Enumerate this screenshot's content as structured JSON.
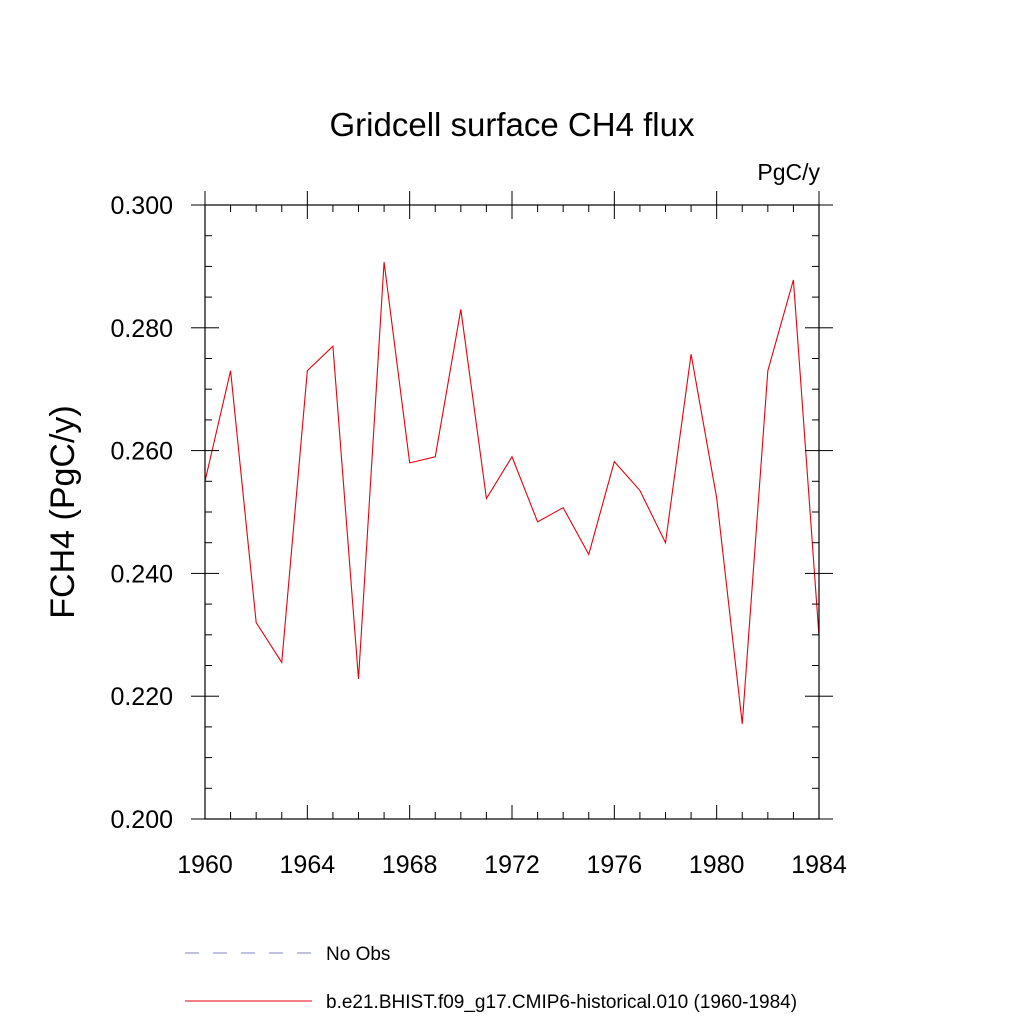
{
  "chart_data": {
    "type": "line",
    "title": "Gridcell surface CH4 flux",
    "units_label": "PgC/y",
    "ylabel": "FCH4  (PgC/y)",
    "xlabel": "",
    "xlim": [
      1960,
      1984
    ],
    "ylim": [
      0.2,
      0.3
    ],
    "x_ticks": [
      1960,
      1964,
      1968,
      1972,
      1976,
      1980,
      1984
    ],
    "x_tick_labels": [
      "1960",
      "1964",
      "1968",
      "1972",
      "1976",
      "1980",
      "1984"
    ],
    "y_ticks": [
      0.2,
      0.22,
      0.24,
      0.26,
      0.28,
      0.3
    ],
    "y_tick_labels": [
      "0.200",
      "0.220",
      "0.240",
      "0.260",
      "0.280",
      "0.300"
    ],
    "grid": false,
    "legend_position": "bottom",
    "series": [
      {
        "name": "No Obs",
        "color": "#8080c0",
        "dash": true,
        "x": [],
        "y": []
      },
      {
        "name": "b.e21.BHIST.f09_g17.CMIP6-historical.010 (1960-1984)",
        "color": "#e8000b",
        "dash": false,
        "x": [
          1960,
          1961,
          1962,
          1963,
          1964,
          1965,
          1966,
          1967,
          1968,
          1969,
          1970,
          1971,
          1972,
          1973,
          1974,
          1975,
          1976,
          1977,
          1978,
          1979,
          1980,
          1981,
          1982,
          1983,
          1984
        ],
        "y": [
          0.255,
          0.273,
          0.232,
          0.2255,
          0.273,
          0.277,
          0.2228,
          0.2907,
          0.258,
          0.259,
          0.283,
          0.2522,
          0.259,
          0.2484,
          0.2507,
          0.2431,
          0.2582,
          0.2535,
          0.245,
          0.2757,
          0.2523,
          0.2155,
          0.273,
          0.2878,
          0.2298
        ]
      }
    ]
  }
}
